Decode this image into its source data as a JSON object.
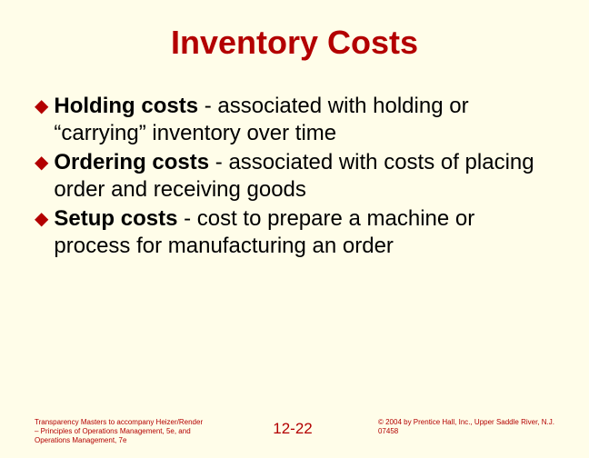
{
  "title": "Inventory Costs",
  "bullets": [
    {
      "bold": "Holding costs",
      "rest": " - associated with holding or “carrying” inventory over time"
    },
    {
      "bold": "Ordering costs",
      "rest": " - associated with costs of placing order and receiving goods"
    },
    {
      "bold": "Setup costs",
      "rest": " - cost to prepare a machine or process for manufacturing an order"
    }
  ],
  "footer": {
    "left": "Transparency Masters to accompany Heizer/Render – Principles of Operations Management, 5e, and Operations Management, 7e",
    "center": "12-22",
    "right": "© 2004 by Prentice Hall, Inc., Upper Saddle River, N.J. 07458"
  },
  "colors": {
    "background": "#fffde9",
    "accent": "#b30000",
    "text": "#000000"
  }
}
